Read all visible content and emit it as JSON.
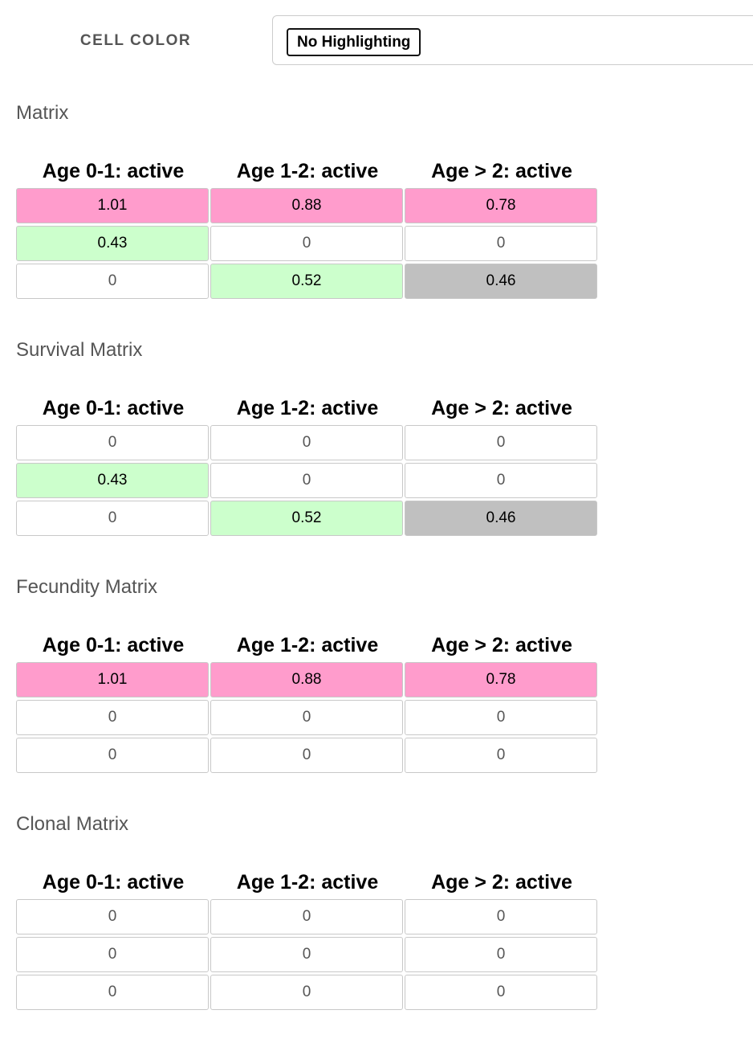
{
  "controls": {
    "cell_color_label": "CELL COLOR",
    "highlight_button_label": "No Highlighting"
  },
  "colors": {
    "pink": "#ff9ccc",
    "green": "#ccffcc",
    "gray": "#c0c0c0",
    "white": "#ffffff"
  },
  "columns": [
    "Age 0-1: active",
    "Age 1-2: active",
    "Age > 2: active"
  ],
  "matrices": [
    {
      "title": "Matrix",
      "rows": [
        [
          {
            "value": "1.01",
            "color": "pink"
          },
          {
            "value": "0.88",
            "color": "pink"
          },
          {
            "value": "0.78",
            "color": "pink"
          }
        ],
        [
          {
            "value": "0.43",
            "color": "green"
          },
          {
            "value": "0",
            "color": "white"
          },
          {
            "value": "0",
            "color": "white"
          }
        ],
        [
          {
            "value": "0",
            "color": "white"
          },
          {
            "value": "0.52",
            "color": "green"
          },
          {
            "value": "0.46",
            "color": "gray"
          }
        ]
      ]
    },
    {
      "title": "Survival Matrix",
      "rows": [
        [
          {
            "value": "0",
            "color": "white"
          },
          {
            "value": "0",
            "color": "white"
          },
          {
            "value": "0",
            "color": "white"
          }
        ],
        [
          {
            "value": "0.43",
            "color": "green"
          },
          {
            "value": "0",
            "color": "white"
          },
          {
            "value": "0",
            "color": "white"
          }
        ],
        [
          {
            "value": "0",
            "color": "white"
          },
          {
            "value": "0.52",
            "color": "green"
          },
          {
            "value": "0.46",
            "color": "gray"
          }
        ]
      ]
    },
    {
      "title": "Fecundity Matrix",
      "rows": [
        [
          {
            "value": "1.01",
            "color": "pink"
          },
          {
            "value": "0.88",
            "color": "pink"
          },
          {
            "value": "0.78",
            "color": "pink"
          }
        ],
        [
          {
            "value": "0",
            "color": "white"
          },
          {
            "value": "0",
            "color": "white"
          },
          {
            "value": "0",
            "color": "white"
          }
        ],
        [
          {
            "value": "0",
            "color": "white"
          },
          {
            "value": "0",
            "color": "white"
          },
          {
            "value": "0",
            "color": "white"
          }
        ]
      ]
    },
    {
      "title": "Clonal Matrix",
      "rows": [
        [
          {
            "value": "0",
            "color": "white"
          },
          {
            "value": "0",
            "color": "white"
          },
          {
            "value": "0",
            "color": "white"
          }
        ],
        [
          {
            "value": "0",
            "color": "white"
          },
          {
            "value": "0",
            "color": "white"
          },
          {
            "value": "0",
            "color": "white"
          }
        ],
        [
          {
            "value": "0",
            "color": "white"
          },
          {
            "value": "0",
            "color": "white"
          },
          {
            "value": "0",
            "color": "white"
          }
        ]
      ]
    }
  ]
}
